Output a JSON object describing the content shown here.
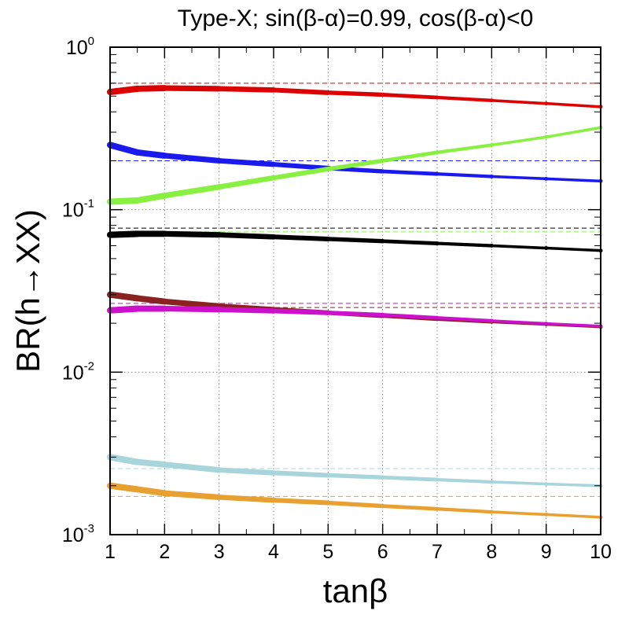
{
  "chart_data": {
    "type": "scatter",
    "title": "Type-X; sin(β-α)=0.99, cos(β-α)<0",
    "xlabel": "tanβ",
    "ylabel": "BR(h→XX)",
    "xlim": [
      1,
      10
    ],
    "ylim": [
      0.001,
      1
    ],
    "yscale": "log",
    "grid": true,
    "x_ticks": [
      "1",
      "2",
      "3",
      "4",
      "5",
      "6",
      "7",
      "8",
      "9",
      "10"
    ],
    "y_ticks": [
      {
        "base": "10",
        "exp": "-3"
      },
      {
        "base": "10",
        "exp": "-2"
      },
      {
        "base": "10",
        "exp": "-1"
      },
      {
        "base": "10",
        "exp": "0"
      }
    ],
    "series": [
      {
        "color": "#dd0000",
        "x": [
          1,
          1.5,
          2,
          3,
          4,
          5,
          6,
          7,
          8,
          9,
          10
        ],
        "values": [
          0.53,
          0.555,
          0.56,
          0.555,
          0.545,
          0.525,
          0.51,
          0.49,
          0.47,
          0.45,
          0.43
        ],
        "reference": 0.6
      },
      {
        "color": "#1a1aee",
        "x": [
          1,
          1.5,
          2,
          3,
          4,
          5,
          6,
          7,
          8,
          9,
          10
        ],
        "values": [
          0.25,
          0.225,
          0.215,
          0.2,
          0.19,
          0.18,
          0.172,
          0.166,
          0.16,
          0.155,
          0.15
        ],
        "reference": 0.2
      },
      {
        "color": "#88f040",
        "x": [
          1,
          1.5,
          2,
          3,
          4,
          5,
          6,
          7,
          8,
          9,
          10
        ],
        "values": [
          0.112,
          0.114,
          0.122,
          0.138,
          0.157,
          0.178,
          0.2,
          0.225,
          0.25,
          0.28,
          0.32
        ],
        "reference": 0.073
      },
      {
        "color": "#000000",
        "x": [
          1,
          1.5,
          2,
          3,
          4,
          5,
          6,
          7,
          8,
          9,
          10
        ],
        "values": [
          0.07,
          0.071,
          0.071,
          0.07,
          0.068,
          0.066,
          0.064,
          0.062,
          0.06,
          0.058,
          0.056
        ],
        "reference": 0.077
      },
      {
        "color": "#8b2222",
        "x": [
          1,
          1.5,
          2,
          3,
          4,
          5,
          6,
          7,
          8,
          9,
          10
        ],
        "values": [
          0.03,
          0.0285,
          0.0272,
          0.0255,
          0.0243,
          0.0232,
          0.0222,
          0.0212,
          0.0204,
          0.0197,
          0.019
        ],
        "reference": 0.025
      },
      {
        "color": "#cc10cc",
        "x": [
          1,
          1.5,
          2,
          3,
          4,
          5,
          6,
          7,
          8,
          9,
          10
        ],
        "values": [
          0.024,
          0.0246,
          0.0246,
          0.0243,
          0.0238,
          0.0232,
          0.0225,
          0.0216,
          0.0207,
          0.0199,
          0.0192
        ],
        "reference": 0.0265
      },
      {
        "color": "#a8d4dc",
        "x": [
          1,
          1.5,
          2,
          3,
          4,
          5,
          6,
          7,
          8,
          9,
          10
        ],
        "values": [
          0.003,
          0.0028,
          0.0027,
          0.0025,
          0.0024,
          0.00232,
          0.00225,
          0.00218,
          0.00211,
          0.00205,
          0.002
        ],
        "reference": 0.00255
      },
      {
        "color": "#e8a030",
        "x": [
          1,
          1.5,
          2,
          3,
          4,
          5,
          6,
          7,
          8,
          9,
          10
        ],
        "values": [
          0.002,
          0.0019,
          0.0018,
          0.0017,
          0.00163,
          0.00157,
          0.0015,
          0.00144,
          0.00138,
          0.00133,
          0.00128
        ],
        "reference": 0.00172
      }
    ]
  }
}
